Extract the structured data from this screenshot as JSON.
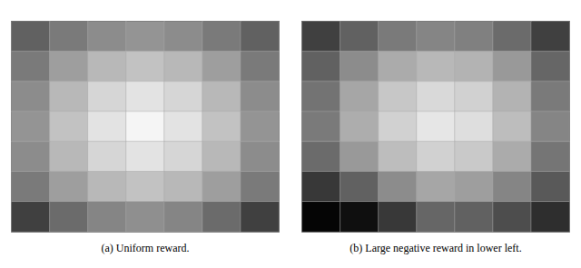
{
  "chart_data": [
    {
      "type": "heatmap",
      "xlabel": "(a) Uniform reward.",
      "cells": [
        [
          0.38,
          0.48,
          0.55,
          0.58,
          0.55,
          0.48,
          0.38
        ],
        [
          0.48,
          0.62,
          0.72,
          0.76,
          0.72,
          0.62,
          0.48
        ],
        [
          0.55,
          0.72,
          0.84,
          0.89,
          0.84,
          0.72,
          0.55
        ],
        [
          0.58,
          0.76,
          0.89,
          0.96,
          0.89,
          0.76,
          0.58
        ],
        [
          0.55,
          0.72,
          0.84,
          0.89,
          0.84,
          0.72,
          0.55
        ],
        [
          0.48,
          0.62,
          0.72,
          0.76,
          0.72,
          0.62,
          0.48
        ],
        [
          0.25,
          0.42,
          0.52,
          0.56,
          0.52,
          0.42,
          0.25
        ]
      ],
      "color_range": [
        0,
        1
      ],
      "colors": [
        "#000000",
        "#ffffff"
      ],
      "grid": true,
      "tick_labels": false
    },
    {
      "type": "heatmap",
      "xlabel": "(b) Large negative reward in lower left.",
      "cells": [
        [
          0.25,
          0.38,
          0.48,
          0.52,
          0.5,
          0.42,
          0.25
        ],
        [
          0.38,
          0.55,
          0.67,
          0.72,
          0.7,
          0.6,
          0.4
        ],
        [
          0.45,
          0.65,
          0.78,
          0.85,
          0.82,
          0.7,
          0.48
        ],
        [
          0.48,
          0.68,
          0.82,
          0.9,
          0.87,
          0.74,
          0.52
        ],
        [
          0.42,
          0.6,
          0.74,
          0.82,
          0.79,
          0.67,
          0.46
        ],
        [
          0.22,
          0.38,
          0.55,
          0.65,
          0.62,
          0.52,
          0.35
        ],
        [
          0.02,
          0.06,
          0.22,
          0.4,
          0.38,
          0.3,
          0.18
        ]
      ],
      "color_range": [
        0,
        1
      ],
      "colors": [
        "#000000",
        "#ffffff"
      ],
      "grid": true,
      "tick_labels": false
    }
  ]
}
